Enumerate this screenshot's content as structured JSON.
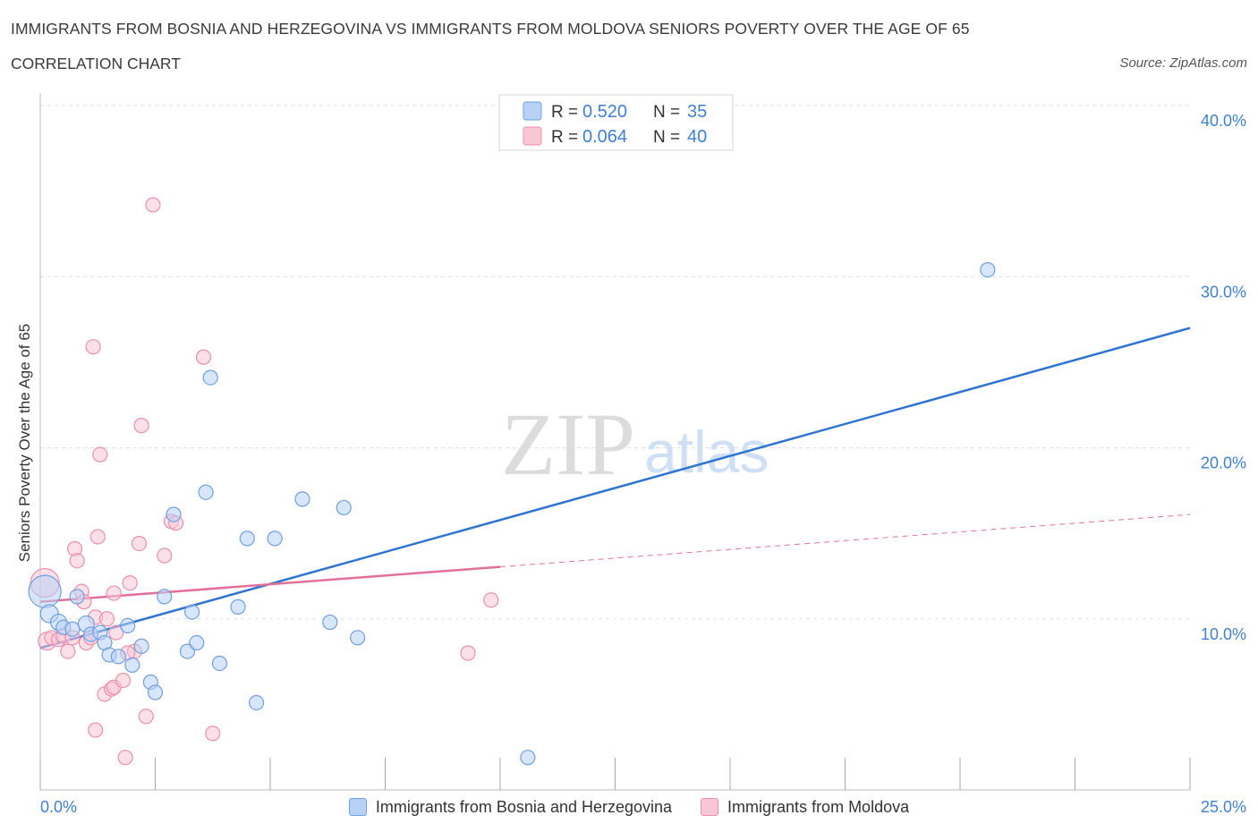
{
  "header": {
    "title": "IMMIGRANTS FROM BOSNIA AND HERZEGOVINA VS IMMIGRANTS FROM MOLDOVA SENIORS POVERTY OVER THE AGE OF 65",
    "subtitle": "CORRELATION CHART",
    "source": "Source: ZipAtlas.com"
  },
  "watermark": {
    "zip": "ZIP",
    "atlas": "atlas"
  },
  "colors": {
    "blue_fill": "#b7d2f5",
    "blue_stroke": "#6f9fe0",
    "blue_line": "#2f74d0",
    "pink_fill": "#f9c6d6",
    "pink_stroke": "#ec8fae",
    "pink_line": "#e2709a",
    "axis_text": "#3f7fd6",
    "grid": "#dddddd"
  },
  "chart_data": {
    "type": "scatter",
    "title": "IMMIGRANTS FROM BOSNIA AND HERZEGOVINA VS IMMIGRANTS FROM MOLDOVA SENIORS POVERTY OVER THE AGE OF 65",
    "xlabel": "",
    "ylabel": "Seniors Poverty Over the Age of 65",
    "xlim": [
      0,
      25
    ],
    "ylim": [
      0,
      40
    ],
    "x_tick_labels": [
      "0.0%",
      "25.0%"
    ],
    "y_ticks": [
      10,
      20,
      30,
      40
    ],
    "y_tick_labels": [
      "10.0%",
      "20.0%",
      "30.0%",
      "40.0%"
    ],
    "grid": true,
    "legend_stats": [
      {
        "r_label": "R =",
        "r_value": "0.520",
        "n_label": "N =",
        "n_value": "35"
      },
      {
        "r_label": "R =",
        "r_value": "0.064",
        "n_label": "N =",
        "n_value": "40"
      }
    ],
    "series": [
      {
        "name": "Immigrants from Bosnia and Herzegovina",
        "color": "blue",
        "points": [
          [
            0.1,
            11.6,
            18
          ],
          [
            0.2,
            10.3,
            10
          ],
          [
            0.4,
            9.8,
            9
          ],
          [
            0.5,
            9.5,
            8
          ],
          [
            0.7,
            9.4,
            8
          ],
          [
            0.8,
            11.3,
            8
          ],
          [
            1.0,
            9.7,
            9
          ],
          [
            1.1,
            9.1,
            8
          ],
          [
            1.3,
            9.2,
            8
          ],
          [
            1.4,
            8.6,
            8
          ],
          [
            1.5,
            7.9,
            8
          ],
          [
            1.7,
            7.8,
            8
          ],
          [
            1.9,
            9.6,
            8
          ],
          [
            2.0,
            7.3,
            8
          ],
          [
            2.2,
            8.4,
            8
          ],
          [
            2.4,
            6.3,
            8
          ],
          [
            2.5,
            5.7,
            8
          ],
          [
            2.7,
            11.3,
            8
          ],
          [
            2.9,
            16.1,
            8
          ],
          [
            3.2,
            8.1,
            8
          ],
          [
            3.3,
            10.4,
            8
          ],
          [
            3.4,
            8.6,
            8
          ],
          [
            3.6,
            17.4,
            8
          ],
          [
            3.7,
            24.1,
            8
          ],
          [
            3.9,
            7.4,
            8
          ],
          [
            4.3,
            10.7,
            8
          ],
          [
            4.5,
            14.7,
            8
          ],
          [
            4.7,
            5.1,
            8
          ],
          [
            5.1,
            14.7,
            8
          ],
          [
            5.7,
            17.0,
            8
          ],
          [
            6.3,
            9.8,
            8
          ],
          [
            6.6,
            16.5,
            8
          ],
          [
            6.9,
            8.9,
            8
          ],
          [
            10.6,
            1.9,
            8
          ],
          [
            20.6,
            30.4,
            8
          ]
        ]
      },
      {
        "name": "Immigrants from Moldova",
        "color": "pink",
        "points": [
          [
            0.1,
            12.1,
            16
          ],
          [
            0.15,
            8.7,
            10
          ],
          [
            0.25,
            8.9,
            8
          ],
          [
            0.4,
            8.8,
            8
          ],
          [
            0.5,
            9.0,
            8
          ],
          [
            0.6,
            8.1,
            8
          ],
          [
            0.7,
            8.9,
            8
          ],
          [
            0.75,
            14.1,
            8
          ],
          [
            0.8,
            13.4,
            8
          ],
          [
            0.9,
            11.6,
            8
          ],
          [
            0.95,
            11.0,
            8
          ],
          [
            1.0,
            8.6,
            8
          ],
          [
            1.1,
            8.9,
            8
          ],
          [
            1.2,
            3.5,
            8
          ],
          [
            1.15,
            25.9,
            8
          ],
          [
            1.2,
            10.1,
            8
          ],
          [
            1.25,
            14.8,
            8
          ],
          [
            1.3,
            19.6,
            8
          ],
          [
            1.4,
            5.6,
            8
          ],
          [
            1.45,
            10.0,
            8
          ],
          [
            1.55,
            5.9,
            8
          ],
          [
            1.6,
            6.0,
            8
          ],
          [
            1.6,
            11.5,
            8
          ],
          [
            1.65,
            9.2,
            8
          ],
          [
            1.8,
            6.4,
            8
          ],
          [
            1.85,
            1.9,
            8
          ],
          [
            1.95,
            12.1,
            8
          ],
          [
            2.05,
            8.1,
            8
          ],
          [
            2.15,
            14.4,
            8
          ],
          [
            2.2,
            21.3,
            8
          ],
          [
            2.3,
            4.3,
            8
          ],
          [
            2.45,
            34.2,
            8
          ],
          [
            2.7,
            13.7,
            8
          ],
          [
            2.85,
            15.7,
            8
          ],
          [
            2.95,
            15.6,
            8
          ],
          [
            3.55,
            25.3,
            8
          ],
          [
            3.75,
            3.3,
            8
          ],
          [
            9.3,
            8.0,
            8
          ],
          [
            9.8,
            11.1,
            8
          ],
          [
            1.9,
            8.0,
            8
          ]
        ]
      }
    ],
    "trendlines": [
      {
        "series": 0,
        "x0": 0,
        "y0": 8.3,
        "x1": 25,
        "y1": 27.0,
        "dashed_after": null
      },
      {
        "series": 1,
        "x0": 0,
        "y0": 11.0,
        "x1": 25,
        "y1": 16.1,
        "dashed_after": 10
      }
    ]
  }
}
